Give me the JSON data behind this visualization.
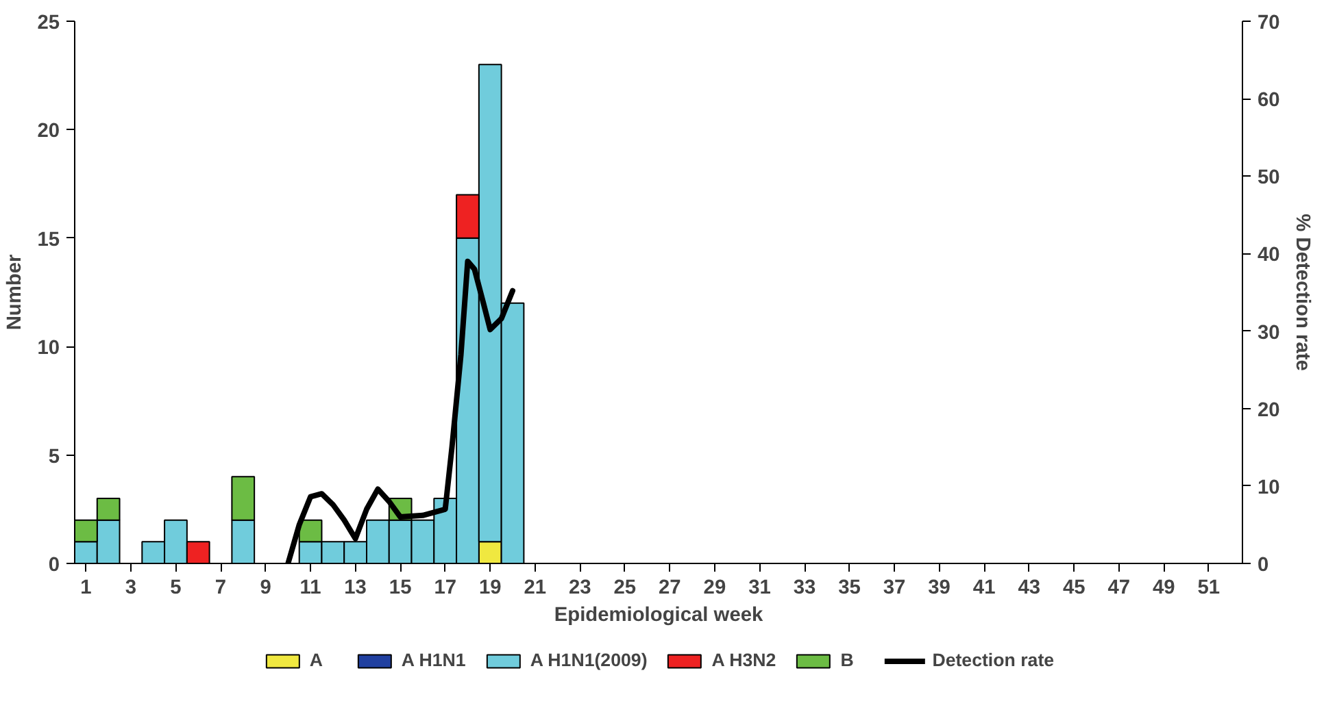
{
  "chart_data": {
    "type": "bar",
    "stacked": true,
    "xlabel": "Epidemiological week",
    "ylabel": "Number",
    "y2label": "% Detection rate",
    "x": [
      1,
      2,
      3,
      4,
      5,
      6,
      7,
      8,
      9,
      10,
      11,
      12,
      13,
      14,
      15,
      16,
      17,
      18,
      19,
      20,
      21,
      22,
      23,
      24,
      25,
      26,
      27,
      28,
      29,
      30,
      31,
      32,
      33,
      34,
      35,
      36,
      37,
      38,
      39,
      40,
      41,
      42,
      43,
      44,
      45,
      46,
      47,
      48,
      49,
      50,
      51,
      52
    ],
    "series": [
      {
        "name": "A",
        "color": "#f0e840",
        "values": [
          0,
          0,
          0,
          0,
          0,
          0,
          0,
          0,
          0,
          0,
          0,
          0,
          0,
          0,
          0,
          0,
          0,
          0,
          1,
          0,
          0,
          0,
          0,
          0,
          0,
          0,
          0,
          0,
          0,
          0,
          0,
          0,
          0,
          0,
          0,
          0,
          0,
          0,
          0,
          0,
          0,
          0,
          0,
          0,
          0,
          0,
          0,
          0,
          0,
          0,
          0,
          0
        ]
      },
      {
        "name": "A H1N1",
        "color": "#2040a0",
        "values": [
          0,
          0,
          0,
          0,
          0,
          0,
          0,
          0,
          0,
          0,
          0,
          0,
          0,
          0,
          0,
          0,
          0,
          0,
          0,
          0,
          0,
          0,
          0,
          0,
          0,
          0,
          0,
          0,
          0,
          0,
          0,
          0,
          0,
          0,
          0,
          0,
          0,
          0,
          0,
          0,
          0,
          0,
          0,
          0,
          0,
          0,
          0,
          0,
          0,
          0,
          0,
          0
        ]
      },
      {
        "name": "A H1N1(2009)",
        "color": "#70ccdc",
        "values": [
          1,
          2,
          0,
          1,
          2,
          0,
          0,
          2,
          0,
          0,
          1,
          1,
          1,
          2,
          2,
          2,
          3,
          15,
          22,
          12,
          0,
          0,
          0,
          0,
          0,
          0,
          0,
          0,
          0,
          0,
          0,
          0,
          0,
          0,
          0,
          0,
          0,
          0,
          0,
          0,
          0,
          0,
          0,
          0,
          0,
          0,
          0,
          0,
          0,
          0,
          0,
          0
        ]
      },
      {
        "name": "A H3N2",
        "color": "#ee2222",
        "values": [
          0,
          0,
          0,
          0,
          0,
          1,
          0,
          0,
          0,
          0,
          0,
          0,
          0,
          0,
          0,
          0,
          0,
          2,
          0,
          0,
          0,
          0,
          0,
          0,
          0,
          0,
          0,
          0,
          0,
          0,
          0,
          0,
          0,
          0,
          0,
          0,
          0,
          0,
          0,
          0,
          0,
          0,
          0,
          0,
          0,
          0,
          0,
          0,
          0,
          0,
          0,
          0
        ]
      },
      {
        "name": "B",
        "color": "#6cbc44",
        "values": [
          1,
          1,
          0,
          0,
          0,
          0,
          0,
          2,
          0,
          0,
          1,
          0,
          0,
          0,
          1,
          0,
          0,
          0,
          0,
          0,
          0,
          0,
          0,
          0,
          0,
          0,
          0,
          0,
          0,
          0,
          0,
          0,
          0,
          0,
          0,
          0,
          0,
          0,
          0,
          0,
          0,
          0,
          0,
          0,
          0,
          0,
          0,
          0,
          0,
          0,
          0,
          0
        ]
      },
      {
        "name": "Detection rate",
        "type": "line",
        "axis": "y2",
        "color": "#000000",
        "x": [
          10,
          10.5,
          11,
          11.5,
          12,
          12.5,
          13,
          13.5,
          14,
          14.5,
          15,
          16,
          17,
          17.3,
          17.7,
          18,
          18.3,
          18.7,
          19,
          19.5,
          20
        ],
        "values": [
          0,
          5,
          8.6,
          9,
          7.6,
          5.6,
          3.2,
          7,
          9.6,
          8,
          6,
          6.2,
          7,
          15,
          27,
          39,
          38,
          33.6,
          30.2,
          31.6,
          35.2
        ]
      }
    ],
    "xlim": [
      0.5,
      52.5
    ],
    "xticks": [
      1,
      3,
      5,
      7,
      9,
      11,
      13,
      15,
      17,
      19,
      21,
      23,
      25,
      27,
      29,
      31,
      33,
      35,
      37,
      39,
      41,
      43,
      45,
      47,
      49,
      51
    ],
    "ylim": [
      0,
      25
    ],
    "yticks": [
      0,
      5,
      10,
      15,
      20,
      25
    ],
    "y2lim": [
      0,
      70
    ],
    "y2ticks": [
      0,
      10,
      20,
      30,
      40,
      50,
      60,
      70
    ],
    "grid": false,
    "legend": "bottom",
    "line_style": "solid",
    "marker": "none"
  }
}
